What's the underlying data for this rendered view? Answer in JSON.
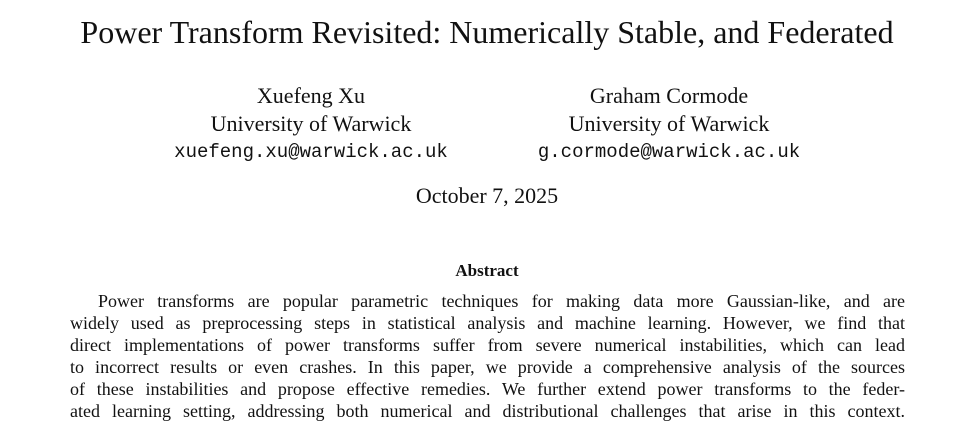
{
  "header": {
    "title": "Power Transform Revisited: Numerically Stable, and Federated"
  },
  "authors": [
    {
      "name": "Xuefeng Xu",
      "affiliation": "University of Warwick",
      "email": "xuefeng.xu@warwick.ac.uk"
    },
    {
      "name": "Graham Cormode",
      "affiliation": "University of Warwick",
      "email": "g.cormode@warwick.ac.uk"
    }
  ],
  "date": "October 7, 2025",
  "abstract": {
    "heading": "Abstract",
    "lines": [
      "Power transforms are popular parametric techniques for making data more Gaussian-like, and are",
      "widely used as preprocessing steps in statistical analysis and machine learning. However, we find that",
      "direct implementations of power transforms suffer from severe numerical instabilities, which can lead",
      "to incorrect results or even crashes. In this paper, we provide a comprehensive analysis of the sources",
      "of these instabilities and propose effective remedies. We further extend power transforms to the feder-",
      "ated learning setting, addressing both numerical and distributional challenges that arise in this context."
    ]
  }
}
